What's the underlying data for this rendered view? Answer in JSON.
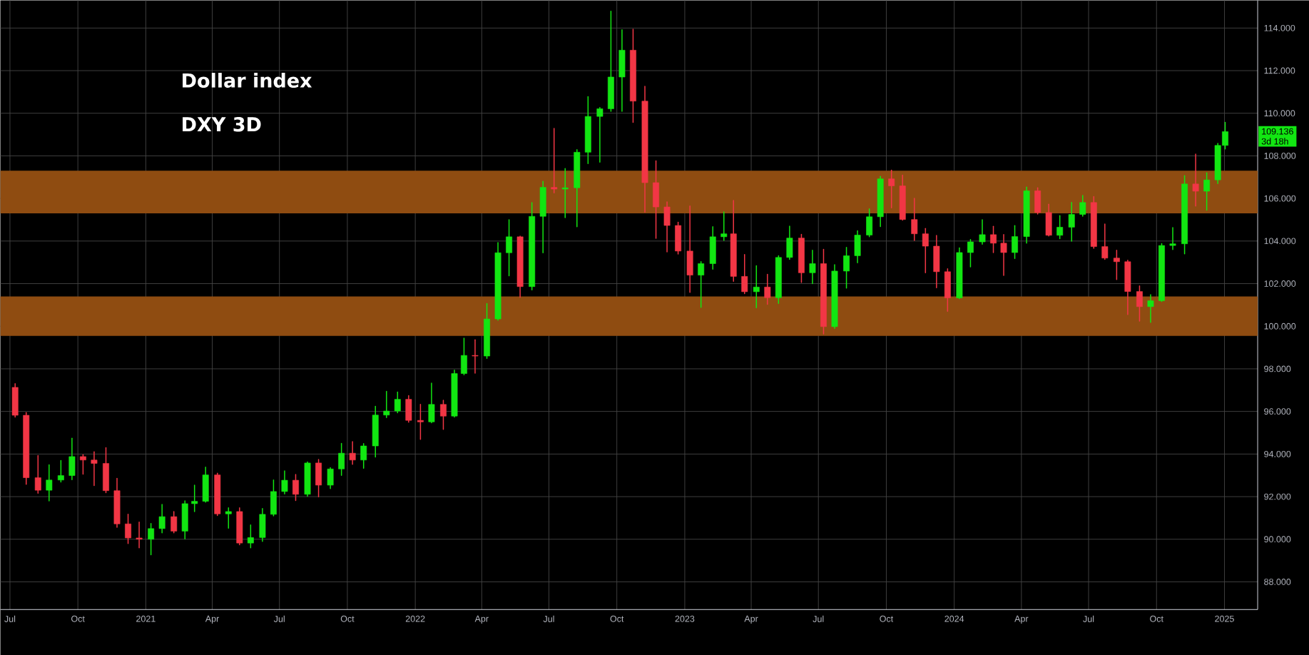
{
  "chart_data": {
    "type": "candlestick",
    "title": "Dollar index",
    "subtitle": "DXY 3D",
    "x": [
      "2020-07-08",
      "2020-07-23",
      "2020-08-08",
      "2020-08-23",
      "2020-09-08",
      "2020-09-23",
      "2020-10-08",
      "2020-10-23",
      "2020-11-08",
      "2020-11-23",
      "2020-12-08",
      "2020-12-23",
      "2021-01-08",
      "2021-01-23",
      "2021-02-08",
      "2021-02-23",
      "2021-03-08",
      "2021-03-23",
      "2021-04-08",
      "2021-04-23",
      "2021-05-08",
      "2021-05-23",
      "2021-06-08",
      "2021-06-23",
      "2021-07-08",
      "2021-07-23",
      "2021-08-08",
      "2021-08-23",
      "2021-09-08",
      "2021-09-23",
      "2021-10-08",
      "2021-10-23",
      "2021-11-08",
      "2021-11-23",
      "2021-12-08",
      "2021-12-23",
      "2022-01-08",
      "2022-01-23",
      "2022-02-08",
      "2022-02-23",
      "2022-03-08",
      "2022-03-23",
      "2022-04-08",
      "2022-04-23",
      "2022-05-08",
      "2022-05-23",
      "2022-06-08",
      "2022-06-23",
      "2022-07-08",
      "2022-07-23",
      "2022-08-08",
      "2022-08-23",
      "2022-09-08",
      "2022-09-23",
      "2022-10-08",
      "2022-10-23",
      "2022-11-08",
      "2022-11-23",
      "2022-12-08",
      "2022-12-23",
      "2023-01-08",
      "2023-01-23",
      "2023-02-08",
      "2023-02-23",
      "2023-03-08",
      "2023-03-23",
      "2023-04-08",
      "2023-04-23",
      "2023-05-08",
      "2023-05-23",
      "2023-06-08",
      "2023-06-23",
      "2023-07-08",
      "2023-07-23",
      "2023-08-08",
      "2023-08-23",
      "2023-09-08",
      "2023-09-23",
      "2023-10-08",
      "2023-10-23",
      "2023-11-08",
      "2023-11-23",
      "2023-12-08",
      "2023-12-23",
      "2024-01-08",
      "2024-01-23",
      "2024-02-08",
      "2024-02-23",
      "2024-03-08",
      "2024-03-23",
      "2024-04-08",
      "2024-04-23",
      "2024-05-08",
      "2024-05-23",
      "2024-06-08",
      "2024-06-23",
      "2024-07-08",
      "2024-07-23",
      "2024-08-08",
      "2024-08-23",
      "2024-09-08",
      "2024-09-23",
      "2024-10-08",
      "2024-10-23",
      "2024-11-08",
      "2024-11-23",
      "2024-12-08",
      "2024-12-23",
      "2025-01-02"
    ],
    "ohlc": [
      [
        97.13,
        97.3,
        95.74,
        95.82
      ],
      [
        95.82,
        95.95,
        92.58,
        92.89
      ],
      [
        92.89,
        93.93,
        92.16,
        92.3
      ],
      [
        92.3,
        93.49,
        91.8,
        92.78
      ],
      [
        92.78,
        93.69,
        92.69,
        92.99
      ],
      [
        92.99,
        94.74,
        92.8,
        93.88
      ],
      [
        93.88,
        93.97,
        93.06,
        93.72
      ],
      [
        93.72,
        94.1,
        92.52,
        93.56
      ],
      [
        93.56,
        94.3,
        92.19,
        92.28
      ],
      [
        92.28,
        92.86,
        90.56,
        90.72
      ],
      [
        90.72,
        91.17,
        89.8,
        90.06
      ],
      [
        90.06,
        90.8,
        89.6,
        90.0
      ],
      [
        90.0,
        90.74,
        89.27,
        90.5
      ],
      [
        90.5,
        91.63,
        90.3,
        91.06
      ],
      [
        91.06,
        91.3,
        90.3,
        90.38
      ],
      [
        90.38,
        91.8,
        90.02,
        91.67
      ],
      [
        91.67,
        92.54,
        91.3,
        91.78
      ],
      [
        91.78,
        93.38,
        91.74,
        93.02
      ],
      [
        93.02,
        93.1,
        91.11,
        91.19
      ],
      [
        91.19,
        91.47,
        90.52,
        91.3
      ],
      [
        91.3,
        91.47,
        89.74,
        89.82
      ],
      [
        89.82,
        90.67,
        89.6,
        90.08
      ],
      [
        90.08,
        91.44,
        89.9,
        91.17
      ],
      [
        91.17,
        92.78,
        91.1,
        92.24
      ],
      [
        92.24,
        93.21,
        92.13,
        92.77
      ],
      [
        92.77,
        93.04,
        91.82,
        92.11
      ],
      [
        92.11,
        93.63,
        92.02,
        93.58
      ],
      [
        93.58,
        93.74,
        91.99,
        92.54
      ],
      [
        92.54,
        93.36,
        92.38,
        93.3
      ],
      [
        93.3,
        94.5,
        93.0,
        94.04
      ],
      [
        94.04,
        94.58,
        93.52,
        93.72
      ],
      [
        93.72,
        94.49,
        93.33,
        94.38
      ],
      [
        94.38,
        96.24,
        93.86,
        95.83
      ],
      [
        95.83,
        96.94,
        95.71,
        96.02
      ],
      [
        96.02,
        96.91,
        95.94,
        96.57
      ],
      [
        96.57,
        96.74,
        95.49,
        95.58
      ],
      [
        95.58,
        96.33,
        94.69,
        95.51
      ],
      [
        95.51,
        97.33,
        95.47,
        96.33
      ],
      [
        96.33,
        96.52,
        95.16,
        95.78
      ],
      [
        95.78,
        97.94,
        95.74,
        97.78
      ],
      [
        97.78,
        99.44,
        97.72,
        98.63
      ],
      [
        98.63,
        99.36,
        97.8,
        98.6
      ],
      [
        98.6,
        101.06,
        98.49,
        100.34
      ],
      [
        100.34,
        103.93,
        100.28,
        103.45
      ],
      [
        103.45,
        105.0,
        102.37,
        104.2
      ],
      [
        104.2,
        104.23,
        101.36,
        101.86
      ],
      [
        101.86,
        105.8,
        101.71,
        105.16
      ],
      [
        105.16,
        106.8,
        103.45,
        106.52
      ],
      [
        106.52,
        109.29,
        106.26,
        106.44
      ],
      [
        106.44,
        107.4,
        105.1,
        106.5
      ],
      [
        106.5,
        108.29,
        104.67,
        108.17
      ],
      [
        108.17,
        110.78,
        107.64,
        109.85
      ],
      [
        109.85,
        110.27,
        107.7,
        110.21
      ],
      [
        110.21,
        114.79,
        110.09,
        111.7
      ],
      [
        111.7,
        113.92,
        110.09,
        112.96
      ],
      [
        112.96,
        113.94,
        109.57,
        110.57
      ],
      [
        110.57,
        111.26,
        105.36,
        106.74
      ],
      [
        106.74,
        107.76,
        104.13,
        105.6
      ],
      [
        105.6,
        105.84,
        103.49,
        104.73
      ],
      [
        104.73,
        104.88,
        103.39,
        103.53
      ],
      [
        103.53,
        105.64,
        101.59,
        102.4
      ],
      [
        102.4,
        103.03,
        100.89,
        102.94
      ],
      [
        102.94,
        104.67,
        102.68,
        104.2
      ],
      [
        104.2,
        105.37,
        104.03,
        104.34
      ],
      [
        104.34,
        105.9,
        102.11,
        102.34
      ],
      [
        102.34,
        103.37,
        101.53,
        101.62
      ],
      [
        101.62,
        102.84,
        100.87,
        101.84
      ],
      [
        101.84,
        102.44,
        101.03,
        101.34
      ],
      [
        101.34,
        103.31,
        101.07,
        103.23
      ],
      [
        103.23,
        104.7,
        103.14,
        104.14
      ],
      [
        104.14,
        104.31,
        102.06,
        102.51
      ],
      [
        102.51,
        103.57,
        102.0,
        102.94
      ],
      [
        102.94,
        103.61,
        99.64,
        99.98
      ],
      [
        99.98,
        102.89,
        99.9,
        102.59
      ],
      [
        102.59,
        103.7,
        101.79,
        103.31
      ],
      [
        103.31,
        104.48,
        102.98,
        104.28
      ],
      [
        104.28,
        105.51,
        104.2,
        105.14
      ],
      [
        105.14,
        107.03,
        104.68,
        106.92
      ],
      [
        106.92,
        107.33,
        105.56,
        106.59
      ],
      [
        106.59,
        107.09,
        104.98,
        105.01
      ],
      [
        105.01,
        106.0,
        104.03,
        104.34
      ],
      [
        104.34,
        104.59,
        102.51,
        103.76
      ],
      [
        103.76,
        104.26,
        101.81,
        102.56
      ],
      [
        102.56,
        102.7,
        100.7,
        101.33
      ],
      [
        101.33,
        103.68,
        101.3,
        103.46
      ],
      [
        103.46,
        104.07,
        102.79,
        103.96
      ],
      [
        103.96,
        105.0,
        103.85,
        104.3
      ],
      [
        104.3,
        104.69,
        103.46,
        103.9
      ],
      [
        103.9,
        104.3,
        102.39,
        103.46
      ],
      [
        103.46,
        104.72,
        103.18,
        104.21
      ],
      [
        104.21,
        106.53,
        103.9,
        106.36
      ],
      [
        106.36,
        106.5,
        105.27,
        105.34
      ],
      [
        105.34,
        105.73,
        104.24,
        104.27
      ],
      [
        104.27,
        105.19,
        104.11,
        104.65
      ],
      [
        104.65,
        105.81,
        103.99,
        105.25
      ],
      [
        105.25,
        106.14,
        105.17,
        105.81
      ],
      [
        105.81,
        106.09,
        103.66,
        103.74
      ],
      [
        103.74,
        104.8,
        103.14,
        103.2
      ],
      [
        103.2,
        103.57,
        102.19,
        103.03
      ],
      [
        103.03,
        103.1,
        100.55,
        101.63
      ],
      [
        101.63,
        101.89,
        100.24,
        100.92
      ],
      [
        100.92,
        101.48,
        100.18,
        101.2
      ],
      [
        101.2,
        103.88,
        101.16,
        103.79
      ],
      [
        103.79,
        104.63,
        103.6,
        103.87
      ],
      [
        103.87,
        107.07,
        103.4,
        106.68
      ],
      [
        106.68,
        108.08,
        105.64,
        106.34
      ],
      [
        106.34,
        107.2,
        105.45,
        106.87
      ],
      [
        106.87,
        108.58,
        106.7,
        108.49
      ],
      [
        108.49,
        109.57,
        108.32,
        109.136
      ]
    ],
    "colors": [
      "#f23645",
      "#f23645",
      "#f23645",
      "#12e612",
      "#12e612",
      "#12e612",
      "#f23645",
      "#f23645",
      "#f23645",
      "#f23645",
      "#f23645",
      "#f23645",
      "#12e612",
      "#12e612",
      "#f23645",
      "#12e612",
      "#12e612",
      "#12e612",
      "#f23645",
      "#12e612",
      "#f23645",
      "#12e612",
      "#12e612",
      "#12e612",
      "#12e612",
      "#f23645",
      "#12e612",
      "#f23645",
      "#12e612",
      "#12e612",
      "#f23645",
      "#12e612",
      "#12e612",
      "#12e612",
      "#12e612",
      "#f23645",
      "#f23645",
      "#12e612",
      "#f23645",
      "#12e612",
      "#12e612",
      "#f23645",
      "#12e612",
      "#12e612",
      "#12e612",
      "#f23645",
      "#12e612",
      "#12e612",
      "#f23645",
      "#12e612",
      "#12e612",
      "#12e612",
      "#12e612",
      "#12e612",
      "#12e612",
      "#f23645",
      "#f23645",
      "#f23645",
      "#f23645",
      "#f23645",
      "#f23645",
      "#12e612",
      "#12e612",
      "#12e612",
      "#f23645",
      "#f23645",
      "#12e612",
      "#f23645",
      "#12e612",
      "#12e612",
      "#f23645",
      "#12e612",
      "#f23645",
      "#12e612",
      "#12e612",
      "#12e612",
      "#12e612",
      "#12e612",
      "#f23645",
      "#f23645",
      "#f23645",
      "#f23645",
      "#f23645",
      "#f23645",
      "#12e612",
      "#12e612",
      "#12e612",
      "#f23645",
      "#f23645",
      "#12e612",
      "#12e612",
      "#f23645",
      "#f23645",
      "#12e612",
      "#12e612",
      "#12e612",
      "#f23645",
      "#f23645",
      "#f23645",
      "#f23645",
      "#f23645",
      "#12e612",
      "#12e612",
      "#12e612",
      "#12e612",
      "#f23645",
      "#12e612",
      "#12e612",
      "#12e612"
    ],
    "xlim": [
      "2020-06-18",
      "2025-02-15"
    ],
    "ylim": [
      86.7,
      115.3
    ],
    "xticks": [
      {
        "value": "2020-07-01",
        "label": "Jul"
      },
      {
        "value": "2020-10-01",
        "label": "Oct"
      },
      {
        "value": "2021-01-01",
        "label": "2021"
      },
      {
        "value": "2021-04-01",
        "label": "Apr"
      },
      {
        "value": "2021-07-01",
        "label": "Jul"
      },
      {
        "value": "2021-10-01",
        "label": "Oct"
      },
      {
        "value": "2022-01-01",
        "label": "2022"
      },
      {
        "value": "2022-04-01",
        "label": "Apr"
      },
      {
        "value": "2022-07-01",
        "label": "Jul"
      },
      {
        "value": "2022-10-01",
        "label": "Oct"
      },
      {
        "value": "2023-01-01",
        "label": "2023"
      },
      {
        "value": "2023-04-01",
        "label": "Apr"
      },
      {
        "value": "2023-07-01",
        "label": "Jul"
      },
      {
        "value": "2023-10-01",
        "label": "Oct"
      },
      {
        "value": "2024-01-01",
        "label": "2024"
      },
      {
        "value": "2024-04-01",
        "label": "Apr"
      },
      {
        "value": "2024-07-01",
        "label": "Jul"
      },
      {
        "value": "2024-10-01",
        "label": "Oct"
      },
      {
        "value": "2025-01-01",
        "label": "2025"
      }
    ],
    "yticks": [
      {
        "value": 88,
        "label": "88.000"
      },
      {
        "value": 90,
        "label": "90.000"
      },
      {
        "value": 92,
        "label": "92.000"
      },
      {
        "value": 94,
        "label": "94.000"
      },
      {
        "value": 96,
        "label": "96.000"
      },
      {
        "value": 98,
        "label": "98.000"
      },
      {
        "value": 100,
        "label": "100.000"
      },
      {
        "value": 102,
        "label": "102.000"
      },
      {
        "value": 104,
        "label": "104.000"
      },
      {
        "value": 106,
        "label": "106.000"
      },
      {
        "value": 108,
        "label": "108.000"
      },
      {
        "value": 110,
        "label": "110.000"
      },
      {
        "value": 112,
        "label": "112.000"
      },
      {
        "value": 114,
        "label": "114.000"
      }
    ],
    "grid": true,
    "bands": [
      {
        "axis": "y",
        "from": 99.55,
        "to": 101.4,
        "color": "#8f4c11"
      },
      {
        "axis": "y",
        "from": 105.3,
        "to": 107.3,
        "color": "#8f4c11"
      }
    ],
    "annotations": [
      "109.136",
      "3d 18h"
    ]
  }
}
